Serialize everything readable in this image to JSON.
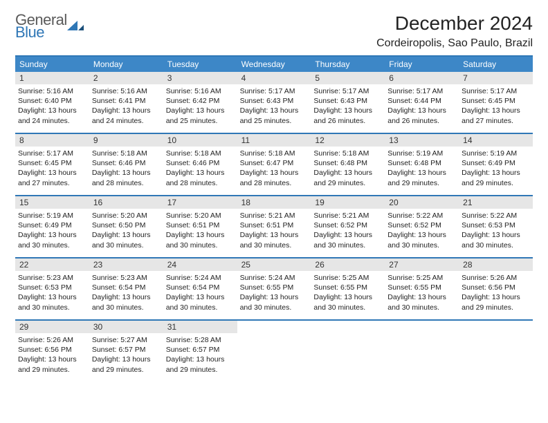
{
  "logo": {
    "line1": "General",
    "line2": "Blue"
  },
  "title": "December 2024",
  "location": "Cordeiropolis, Sao Paulo, Brazil",
  "colors": {
    "accent": "#2f77b6",
    "header_row_bg": "#3d87c7",
    "header_row_text": "#ffffff",
    "daynum_bg": "#e6e6e6",
    "body_text": "#222222",
    "background": "#ffffff"
  },
  "day_headers": [
    "Sunday",
    "Monday",
    "Tuesday",
    "Wednesday",
    "Thursday",
    "Friday",
    "Saturday"
  ],
  "weeks": [
    [
      {
        "n": "1",
        "sunrise": "5:16 AM",
        "sunset": "6:40 PM",
        "day_h": "13",
        "day_m": "24"
      },
      {
        "n": "2",
        "sunrise": "5:16 AM",
        "sunset": "6:41 PM",
        "day_h": "13",
        "day_m": "24"
      },
      {
        "n": "3",
        "sunrise": "5:16 AM",
        "sunset": "6:42 PM",
        "day_h": "13",
        "day_m": "25"
      },
      {
        "n": "4",
        "sunrise": "5:17 AM",
        "sunset": "6:43 PM",
        "day_h": "13",
        "day_m": "25"
      },
      {
        "n": "5",
        "sunrise": "5:17 AM",
        "sunset": "6:43 PM",
        "day_h": "13",
        "day_m": "26"
      },
      {
        "n": "6",
        "sunrise": "5:17 AM",
        "sunset": "6:44 PM",
        "day_h": "13",
        "day_m": "26"
      },
      {
        "n": "7",
        "sunrise": "5:17 AM",
        "sunset": "6:45 PM",
        "day_h": "13",
        "day_m": "27"
      }
    ],
    [
      {
        "n": "8",
        "sunrise": "5:17 AM",
        "sunset": "6:45 PM",
        "day_h": "13",
        "day_m": "27"
      },
      {
        "n": "9",
        "sunrise": "5:18 AM",
        "sunset": "6:46 PM",
        "day_h": "13",
        "day_m": "28"
      },
      {
        "n": "10",
        "sunrise": "5:18 AM",
        "sunset": "6:46 PM",
        "day_h": "13",
        "day_m": "28"
      },
      {
        "n": "11",
        "sunrise": "5:18 AM",
        "sunset": "6:47 PM",
        "day_h": "13",
        "day_m": "28"
      },
      {
        "n": "12",
        "sunrise": "5:18 AM",
        "sunset": "6:48 PM",
        "day_h": "13",
        "day_m": "29"
      },
      {
        "n": "13",
        "sunrise": "5:19 AM",
        "sunset": "6:48 PM",
        "day_h": "13",
        "day_m": "29"
      },
      {
        "n": "14",
        "sunrise": "5:19 AM",
        "sunset": "6:49 PM",
        "day_h": "13",
        "day_m": "29"
      }
    ],
    [
      {
        "n": "15",
        "sunrise": "5:19 AM",
        "sunset": "6:49 PM",
        "day_h": "13",
        "day_m": "30"
      },
      {
        "n": "16",
        "sunrise": "5:20 AM",
        "sunset": "6:50 PM",
        "day_h": "13",
        "day_m": "30"
      },
      {
        "n": "17",
        "sunrise": "5:20 AM",
        "sunset": "6:51 PM",
        "day_h": "13",
        "day_m": "30"
      },
      {
        "n": "18",
        "sunrise": "5:21 AM",
        "sunset": "6:51 PM",
        "day_h": "13",
        "day_m": "30"
      },
      {
        "n": "19",
        "sunrise": "5:21 AM",
        "sunset": "6:52 PM",
        "day_h": "13",
        "day_m": "30"
      },
      {
        "n": "20",
        "sunrise": "5:22 AM",
        "sunset": "6:52 PM",
        "day_h": "13",
        "day_m": "30"
      },
      {
        "n": "21",
        "sunrise": "5:22 AM",
        "sunset": "6:53 PM",
        "day_h": "13",
        "day_m": "30"
      }
    ],
    [
      {
        "n": "22",
        "sunrise": "5:23 AM",
        "sunset": "6:53 PM",
        "day_h": "13",
        "day_m": "30"
      },
      {
        "n": "23",
        "sunrise": "5:23 AM",
        "sunset": "6:54 PM",
        "day_h": "13",
        "day_m": "30"
      },
      {
        "n": "24",
        "sunrise": "5:24 AM",
        "sunset": "6:54 PM",
        "day_h": "13",
        "day_m": "30"
      },
      {
        "n": "25",
        "sunrise": "5:24 AM",
        "sunset": "6:55 PM",
        "day_h": "13",
        "day_m": "30"
      },
      {
        "n": "26",
        "sunrise": "5:25 AM",
        "sunset": "6:55 PM",
        "day_h": "13",
        "day_m": "30"
      },
      {
        "n": "27",
        "sunrise": "5:25 AM",
        "sunset": "6:55 PM",
        "day_h": "13",
        "day_m": "30"
      },
      {
        "n": "28",
        "sunrise": "5:26 AM",
        "sunset": "6:56 PM",
        "day_h": "13",
        "day_m": "29"
      }
    ],
    [
      {
        "n": "29",
        "sunrise": "5:26 AM",
        "sunset": "6:56 PM",
        "day_h": "13",
        "day_m": "29"
      },
      {
        "n": "30",
        "sunrise": "5:27 AM",
        "sunset": "6:57 PM",
        "day_h": "13",
        "day_m": "29"
      },
      {
        "n": "31",
        "sunrise": "5:28 AM",
        "sunset": "6:57 PM",
        "day_h": "13",
        "day_m": "29"
      },
      null,
      null,
      null,
      null
    ]
  ],
  "labels": {
    "sunrise": "Sunrise:",
    "sunset": "Sunset:",
    "daylight": "Daylight:",
    "hours": "hours",
    "and": "and",
    "minutes": "minutes."
  }
}
